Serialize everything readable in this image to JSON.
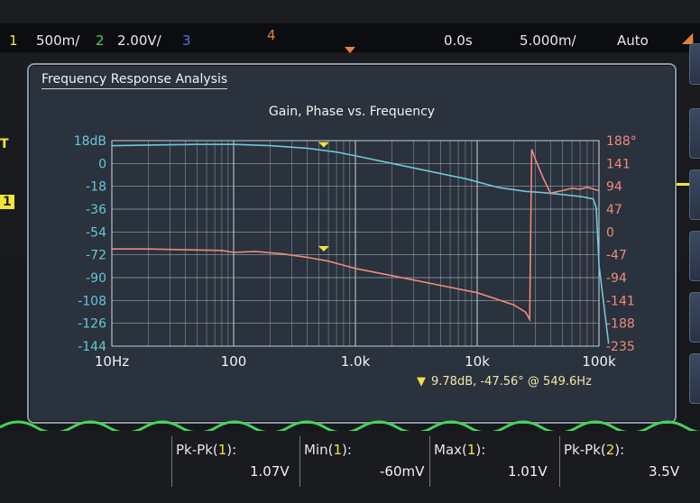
{
  "topbar": {
    "ch1_num": "1",
    "ch1_scale": "500𝗆/",
    "ch2_num": "2",
    "ch2_scale": "2.00V/",
    "ch3_num": "3",
    "ch4_num": "4",
    "time_offset": "0.0s",
    "time_scale": "5.000𝗆/",
    "trigger_mode": "Auto"
  },
  "left_markers": {
    "trigger": "T",
    "ch1": "1"
  },
  "fra": {
    "window_title": "Frequency Response Analysis",
    "cursor_readout": "9.78dB, -47.56° @ 549.6Hz"
  },
  "chart_data": {
    "type": "line",
    "title": "Gain, Phase vs. Frequency",
    "x_scale": "log",
    "xlim": [
      10,
      100000
    ],
    "x_tick_values": [
      10,
      100,
      1000,
      10000,
      100000
    ],
    "x_tick_labels": [
      "10Hz",
      "100",
      "1.0k",
      "10k",
      "100k"
    ],
    "left_ylim": [
      -144,
      18
    ],
    "left_tick_labels": [
      "18dB",
      "0",
      "-18",
      "-36",
      "-54",
      "-72",
      "-90",
      "-108",
      "-126",
      "-144"
    ],
    "right_ylim": [
      -235,
      188
    ],
    "right_tick_labels": [
      "188°",
      "141",
      "94",
      "47",
      "0",
      "-47",
      "-94",
      "-141",
      "-188",
      "-235"
    ],
    "grid": true,
    "colors": {
      "gain": "#6ec8d6",
      "phase": "#ef8a7c",
      "marker": "#f2e13c",
      "grid": "#c4ccd6"
    },
    "series": [
      {
        "axis": "left",
        "x": [
          10,
          20,
          50,
          100,
          200,
          400,
          700,
          1000,
          2000,
          4000,
          8000,
          15000,
          25000,
          35000,
          50000,
          70000,
          80000,
          90000,
          95000,
          100000,
          120000
        ],
        "values": [
          14,
          14.5,
          15,
          15,
          14,
          12,
          9,
          6,
          0,
          -6,
          -12,
          -19,
          -22,
          -23,
          -24.5,
          -26,
          -27,
          -28,
          -35,
          -80,
          -142
        ]
      },
      {
        "axis": "right",
        "x": [
          10,
          20,
          50,
          80,
          100,
          150,
          250,
          400,
          600,
          1000,
          2000,
          5000,
          10000,
          20000,
          25000,
          27000,
          28000,
          30000,
          35000,
          40000,
          50000,
          60000,
          70000,
          80000,
          100000
        ],
        "values": [
          -35,
          -35,
          -37,
          -38,
          -42,
          -40,
          -45,
          -52,
          -60,
          -75,
          -90,
          -110,
          -125,
          -150,
          -165,
          -180,
          170,
          150,
          110,
          80,
          85,
          90,
          88,
          92,
          85
        ]
      }
    ],
    "markers": [
      {
        "axis": "left",
        "x": 549.6,
        "y": 9.78
      },
      {
        "axis": "right",
        "x": 549.6,
        "y": -47.56
      }
    ]
  },
  "measurements": [
    {
      "label_pre": "Pk-Pk(",
      "channel": "1",
      "label_post": "):",
      "value": "1.07V"
    },
    {
      "label_pre": "Min(",
      "channel": "1",
      "label_post": "):",
      "value": "-60mV"
    },
    {
      "label_pre": "Max(",
      "channel": "1",
      "label_post": "):",
      "value": "1.01V"
    },
    {
      "label_pre": "Pk-Pk(",
      "channel": "2",
      "label_post": "):",
      "value": "3.5V"
    }
  ]
}
